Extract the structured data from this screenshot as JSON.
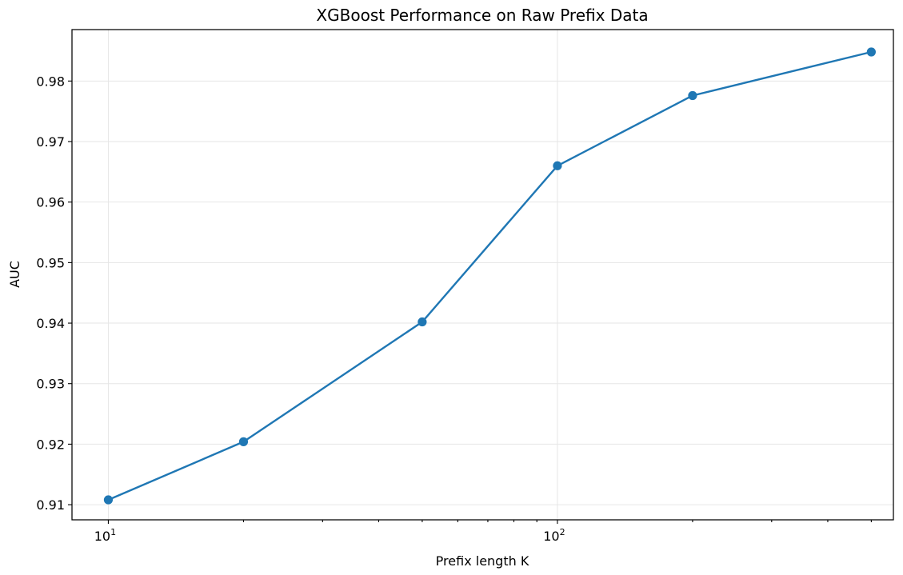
{
  "chart_data": {
    "type": "line",
    "title": "XGBoost Performance on Raw Prefix Data",
    "xlabel": "Prefix length K",
    "ylabel": "AUC",
    "x_scale": "log",
    "xlim": [
      8.3,
      560
    ],
    "ylim": [
      0.9075,
      0.9885
    ],
    "grid": true,
    "legend": "none",
    "color": "#1f77b4",
    "x_ticks": [
      {
        "value": 10,
        "base": "10",
        "exp": "1"
      },
      {
        "value": 100,
        "base": "10",
        "exp": "2"
      }
    ],
    "y_ticks": [
      {
        "value": 0.91,
        "label": "0.91"
      },
      {
        "value": 0.92,
        "label": "0.92"
      },
      {
        "value": 0.93,
        "label": "0.93"
      },
      {
        "value": 0.94,
        "label": "0.94"
      },
      {
        "value": 0.95,
        "label": "0.95"
      },
      {
        "value": 0.96,
        "label": "0.96"
      },
      {
        "value": 0.97,
        "label": "0.97"
      },
      {
        "value": 0.98,
        "label": "0.98"
      }
    ],
    "minor_x_ticks": [
      20,
      30,
      40,
      50,
      60,
      70,
      80,
      90,
      200,
      300,
      400,
      500
    ],
    "series": [
      {
        "x": [
          10,
          20,
          50,
          100,
          200,
          500
        ],
        "y": [
          0.9108,
          0.9204,
          0.9402,
          0.966,
          0.9776,
          0.9848
        ]
      }
    ]
  }
}
